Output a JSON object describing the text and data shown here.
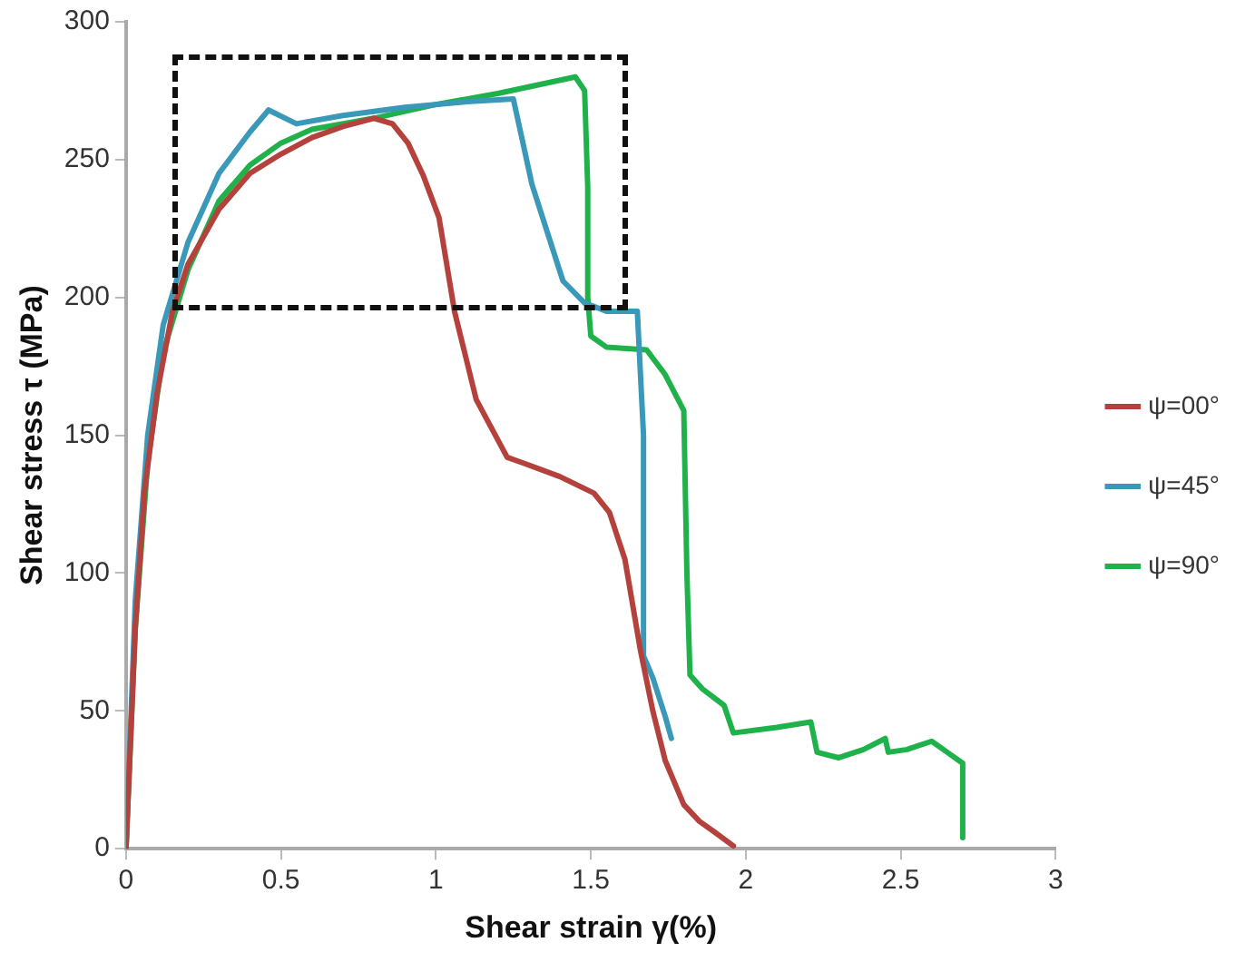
{
  "chart_data": {
    "type": "line",
    "xlabel": "Shear strain γ(%)",
    "ylabel": "Shear stress τ (MPa)",
    "xlim": [
      0,
      3
    ],
    "xticks": [
      0,
      0.5,
      1,
      1.5,
      2,
      2.5,
      3
    ],
    "ylim": [
      0,
      300
    ],
    "yticks": [
      0,
      50,
      100,
      150,
      200,
      250,
      300
    ],
    "grid": false,
    "legend": "right",
    "marker": "none",
    "line_style": "solid",
    "series": [
      {
        "name": "ψ=00°",
        "color": "#b5413d",
        "x": [
          0,
          0.03,
          0.06,
          0.1,
          0.15,
          0.2,
          0.3,
          0.4,
          0.5,
          0.6,
          0.7,
          0.8,
          0.86,
          0.91,
          0.96,
          1.01,
          1.06,
          1.13,
          1.23,
          1.28,
          1.4,
          1.51,
          1.56,
          1.61,
          1.66,
          1.7,
          1.74,
          1.8,
          1.85,
          1.9,
          1.96
        ],
        "values": [
          0,
          80,
          130,
          165,
          195,
          212,
          232,
          245,
          252,
          258,
          262,
          265,
          263,
          256,
          244,
          229,
          195,
          163,
          142,
          140,
          135,
          129,
          122,
          105,
          72,
          50,
          32,
          16,
          10,
          6,
          1
        ]
      },
      {
        "name": "ψ=45°",
        "color": "#3a98b8",
        "x": [
          0,
          0.03,
          0.07,
          0.12,
          0.2,
          0.3,
          0.4,
          0.46,
          0.55,
          0.7,
          0.9,
          1.1,
          1.25,
          1.31,
          1.41,
          1.48,
          1.55,
          1.65,
          1.67,
          1.67,
          1.7,
          1.74,
          1.76
        ],
        "values": [
          0,
          90,
          150,
          190,
          220,
          245,
          260,
          268,
          263,
          266,
          269,
          271,
          272,
          241,
          206,
          198,
          195,
          195,
          150,
          70,
          62,
          48,
          40
        ]
      },
      {
        "name": "ψ=90°",
        "color": "#1fb24a",
        "x": [
          0,
          0.03,
          0.07,
          0.12,
          0.2,
          0.3,
          0.4,
          0.5,
          0.6,
          0.8,
          1.0,
          1.2,
          1.45,
          1.48,
          1.49,
          1.49,
          1.5,
          1.55,
          1.68,
          1.74,
          1.8,
          1.81,
          1.82,
          1.86,
          1.93,
          1.96,
          2.1,
          2.21,
          2.23,
          2.3,
          2.38,
          2.45,
          2.46,
          2.52,
          2.6,
          2.65,
          2.7,
          2.7
        ],
        "values": [
          0,
          80,
          140,
          180,
          210,
          235,
          248,
          256,
          261,
          265,
          270,
          274,
          280,
          275,
          240,
          200,
          186,
          182,
          181,
          172,
          159,
          100,
          63,
          58,
          52,
          42,
          44,
          46,
          35,
          33,
          36,
          40,
          35,
          36,
          39,
          35,
          31,
          4
        ]
      }
    ]
  }
}
